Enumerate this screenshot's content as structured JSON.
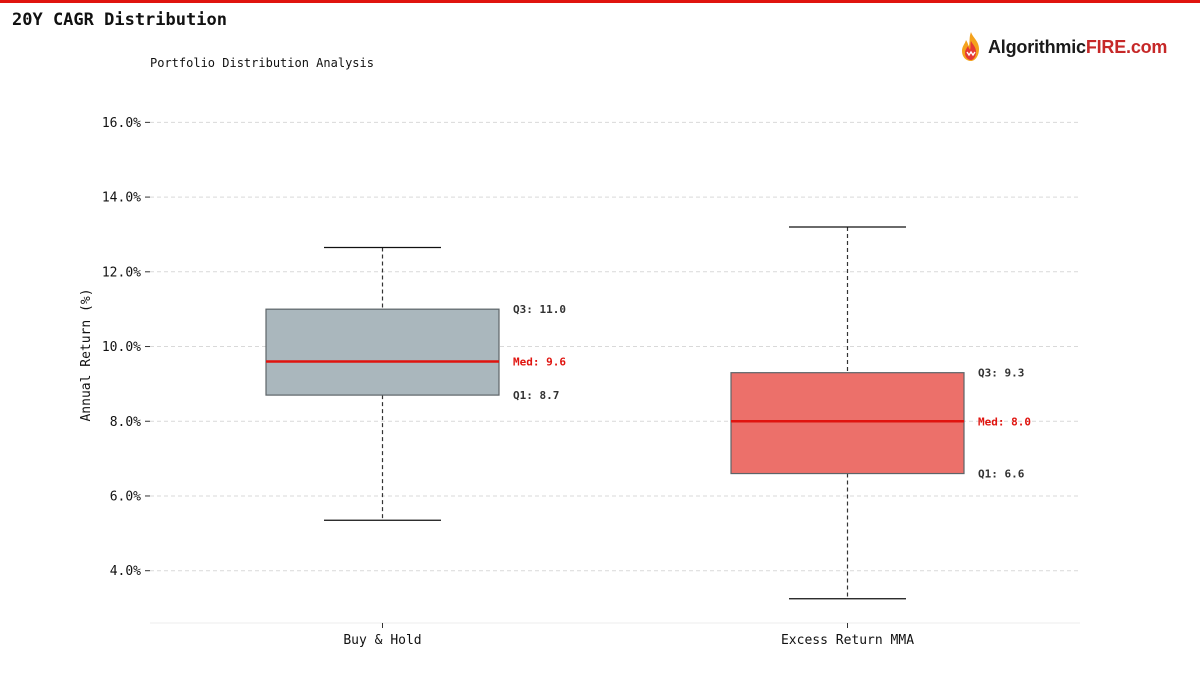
{
  "page": {
    "title": "20Y CAGR Distribution",
    "accent_color": "#e0140f"
  },
  "logo": {
    "icon": "flame-icon",
    "text_dark": "Algorithmic",
    "text_red": "FIRE.com"
  },
  "chart_data": {
    "type": "box",
    "subtitle": "Portfolio Distribution Analysis",
    "ylabel": "Annual Return (%)",
    "xlabel": "",
    "ylim": [
      2.6,
      17.0
    ],
    "yticks": [
      4.0,
      6.0,
      8.0,
      10.0,
      12.0,
      14.0,
      16.0
    ],
    "ytick_labels": [
      "4.0%",
      "6.0%",
      "8.0%",
      "10.0%",
      "12.0%",
      "14.0%",
      "16.0%"
    ],
    "grid": true,
    "median_color": "#e0140f",
    "categories": [
      "Buy & Hold",
      "Excess Return MMA"
    ],
    "series": [
      {
        "category": "Buy & Hold",
        "whisker_low": 5.35,
        "q1": 8.7,
        "median": 9.6,
        "q3": 11.0,
        "whisker_high": 12.65,
        "color": "#aab7bd",
        "label_q3": "Q3: 11.0",
        "label_median": "Med: 9.6",
        "label_q1": "Q1: 8.7"
      },
      {
        "category": "Excess Return MMA",
        "whisker_low": 3.25,
        "q1": 6.6,
        "median": 8.0,
        "q3": 9.3,
        "whisker_high": 13.2,
        "color": "#ec706a",
        "label_q3": "Q3: 9.3",
        "label_median": "Med: 8.0",
        "label_q1": "Q1: 6.6"
      }
    ]
  }
}
